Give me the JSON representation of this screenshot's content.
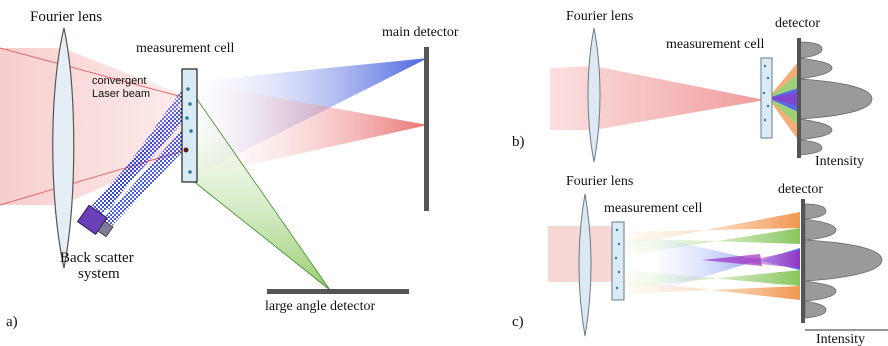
{
  "panel_a": {
    "tag": "a)",
    "fourier_lens": "Fourier lens",
    "measurement_cell": "measurement cell",
    "main_detector": "main detector",
    "beam_line1": "convergent",
    "beam_line2": "Laser beam",
    "back_scatter_line1": "Back scatter",
    "back_scatter_line2": "system",
    "large_angle_detector": "large angle detector"
  },
  "panel_b": {
    "tag": "b)",
    "fourier_lens": "Fourier lens",
    "measurement_cell": "measurement cell",
    "detector": "detector",
    "intensity": "Intensity"
  },
  "panel_c": {
    "tag": "c)",
    "fourier_lens": "Fourier lens",
    "measurement_cell": "measurement cell",
    "detector": "detector",
    "intensity": "Intensity"
  },
  "colors": {
    "laser_red": "#e84b4b",
    "blue": "#1f3fd6",
    "green": "#7cc04a",
    "orange": "#f08a3a",
    "purple": "#9b2fc0",
    "detector_gray": "#555555",
    "lens_fill": "#dde9f2"
  }
}
